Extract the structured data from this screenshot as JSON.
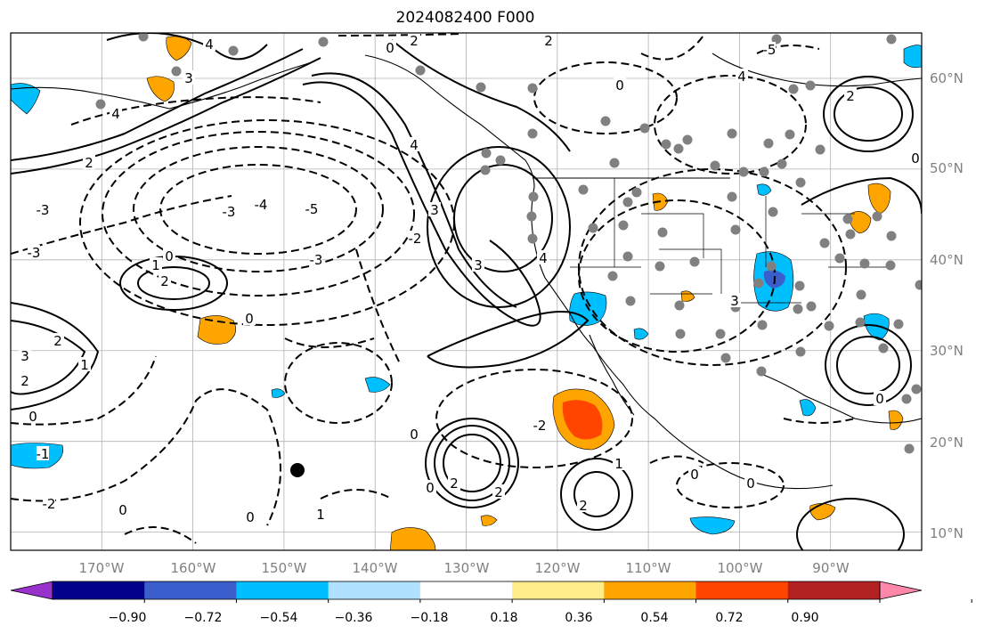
{
  "title": "2024082400 F000",
  "map": {
    "projection": "PlateCarree",
    "lon_range": [
      -180,
      -80
    ],
    "lat_range": [
      8,
      65
    ],
    "lat_labels": [
      "10°N",
      "20°N",
      "30°N",
      "40°N",
      "50°N",
      "60°N"
    ],
    "lon_labels": [
      "170°W",
      "160°W",
      "150°W",
      "140°W",
      "130°W",
      "120°W",
      "110°W",
      "100°W",
      "90°W"
    ],
    "grid": true,
    "contour_labels": [
      "0",
      "2",
      "4",
      "3",
      "1",
      "-1",
      "-2",
      "-3",
      "-4",
      "-5"
    ]
  },
  "colorbar": {
    "orientation": "horizontal",
    "extend": "both",
    "ticks": [
      "−0.90",
      "−0.72",
      "−0.54",
      "−0.36",
      "−0.18",
      "0.18",
      "0.36",
      "0.54",
      "0.72",
      "0.90"
    ],
    "colors": [
      "#9932CC",
      "#00008B",
      "#3A5FCD",
      "#00BFFF",
      "#B0E2FF",
      "#FFFFFF",
      "#FFEC8B",
      "#FFA500",
      "#FF4500",
      "#B22222",
      "#FF88AA"
    ]
  }
}
